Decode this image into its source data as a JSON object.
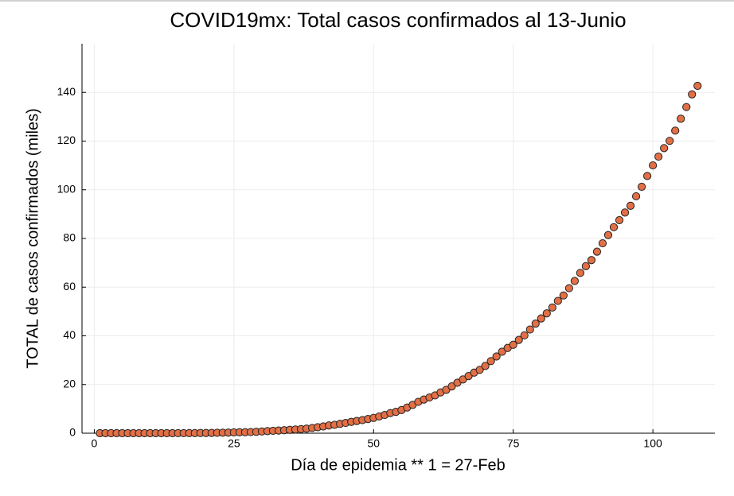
{
  "chart_data": {
    "type": "scatter",
    "title": "COVID19mx: Total casos confirmados al 13-Junio",
    "xlabel": "Día de epidemia ** 1 = 27-Feb",
    "ylabel": "TOTAL de casos confirmados (miles)",
    "xlim": [
      -2.2,
      111.1
    ],
    "ylim": [
      0,
      160
    ],
    "xticks": [
      0,
      25,
      50,
      75,
      100
    ],
    "yticks": [
      0,
      20,
      40,
      60,
      80,
      100,
      120,
      140
    ],
    "grid": true,
    "series": [
      {
        "name": "casos",
        "color": "#e26f46",
        "x": [
          1,
          2,
          3,
          4,
          5,
          6,
          7,
          8,
          9,
          10,
          11,
          12,
          13,
          14,
          15,
          16,
          17,
          18,
          19,
          20,
          21,
          22,
          23,
          24,
          25,
          26,
          27,
          28,
          29,
          30,
          31,
          32,
          33,
          34,
          35,
          36,
          37,
          38,
          39,
          40,
          41,
          42,
          43,
          44,
          45,
          46,
          47,
          48,
          49,
          50,
          51,
          52,
          53,
          54,
          55,
          56,
          57,
          58,
          59,
          60,
          61,
          62,
          63,
          64,
          65,
          66,
          67,
          68,
          69,
          70,
          71,
          72,
          73,
          74,
          75,
          76,
          77,
          78,
          79,
          80,
          81,
          82,
          83,
          84,
          85,
          86,
          87,
          88,
          89,
          90,
          91,
          92,
          93,
          94,
          95,
          96,
          97,
          98,
          99,
          100,
          101,
          102,
          103,
          104,
          105,
          106,
          107,
          108
        ],
        "values": [
          0.001,
          0.001,
          0.001,
          0.002,
          0.003,
          0.005,
          0.005,
          0.006,
          0.007,
          0.007,
          0.007,
          0.007,
          0.007,
          0.012,
          0.015,
          0.026,
          0.041,
          0.053,
          0.082,
          0.093,
          0.118,
          0.164,
          0.203,
          0.251,
          0.316,
          0.367,
          0.405,
          0.475,
          0.585,
          0.717,
          0.848,
          0.993,
          1.094,
          1.215,
          1.378,
          1.51,
          1.688,
          1.89,
          2.143,
          2.439,
          2.785,
          3.181,
          3.441,
          3.844,
          4.219,
          4.661,
          5.014,
          5.399,
          5.847,
          6.297,
          6.875,
          7.497,
          8.261,
          8.772,
          9.501,
          10.544,
          11.633,
          12.872,
          13.842,
          14.677,
          15.529,
          16.752,
          17.799,
          19.224,
          20.739,
          22.088,
          23.471,
          24.905,
          26.025,
          27.634,
          29.616,
          31.522,
          33.46,
          35.022,
          36.327,
          38.324,
          40.186,
          42.595,
          45.032,
          47.144,
          49.219,
          51.633,
          54.346,
          56.594,
          59.567,
          62.527,
          65.856,
          68.62,
          71.105,
          74.56,
          78.023,
          81.4,
          84.627,
          87.512,
          90.664,
          93.435,
          97.326,
          101.238,
          105.68,
          110.026,
          113.619,
          117.103,
          120.102,
          124.301,
          129.184,
          133.974,
          139.196,
          142.69
        ]
      }
    ]
  }
}
